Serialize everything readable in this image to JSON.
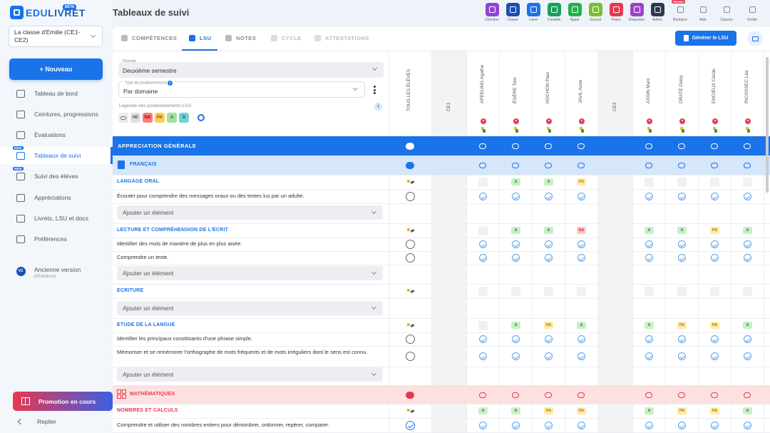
{
  "app": {
    "logo_prefix": "EDU",
    "logo_suffix": "LIVRET",
    "beta": "BÊTA",
    "page_title": "Tableaux de suivi"
  },
  "colors": {
    "primary": "#1a73e8",
    "francais": "#d6e6fb",
    "maths": "#fde0e0",
    "danger": "#e8384f"
  },
  "sidebar": {
    "class_select": "La classe d'Emilie (CE1-CE2)",
    "new_button": "+ Nouveau",
    "items": [
      {
        "label": "Tableau de bord",
        "icon": "home-icon",
        "active": false,
        "new": false
      },
      {
        "label": "Ceintures, progressions",
        "icon": "belt-icon",
        "active": false,
        "new": false
      },
      {
        "label": "Évaluations",
        "icon": "checkbox-icon",
        "active": false,
        "new": false
      },
      {
        "label": "Tableaux de suivi",
        "icon": "table-icon",
        "active": true,
        "new": true
      },
      {
        "label": "Suivi des élèves",
        "icon": "users-icon",
        "active": false,
        "new": true
      },
      {
        "label": "Appréciations",
        "icon": "chat-icon",
        "active": false,
        "new": false
      },
      {
        "label": "Livrets, LSU et docs",
        "icon": "book-icon",
        "active": false,
        "new": false
      },
      {
        "label": "Préférences",
        "icon": "gear-icon",
        "active": false,
        "new": false
      }
    ],
    "old_version": "Ancienne version",
    "old_version_sub": "d'Edulivret",
    "old_version_badge": "V1",
    "new_tag": "NEW",
    "promo": "Promotion en cours",
    "collapse": "Replier"
  },
  "toolbar": [
    {
      "label": "Direction",
      "color": "#8e44d6",
      "icon": "pen-icon"
    },
    {
      "label": "Classe",
      "color": "#1a4fb4",
      "icon": "class-icon"
    },
    {
      "label": "Livret",
      "color": "#1a73e8",
      "icon": "check-icon"
    },
    {
      "label": "Cartable",
      "color": "#1aa05a",
      "icon": "bag-icon"
    },
    {
      "label": "Appel",
      "color": "#23b24b",
      "icon": "hand-icon"
    },
    {
      "label": "Journal",
      "color": "#7cbf2e",
      "icon": "calendar-icon"
    },
    {
      "label": "Preps",
      "color": "#e8384f",
      "icon": "doc-icon"
    },
    {
      "label": "Étiquettes",
      "color": "#a040c8",
      "icon": "tag-icon"
    },
    {
      "label": "Admin",
      "color": "#2b3a4a",
      "icon": "gear-icon"
    },
    {
      "label": "Boutique",
      "color": "#ffffff",
      "icon": "cart-icon",
      "promo": "PROMO"
    },
    {
      "label": "Aide",
      "color": "#ffffff",
      "icon": "help-icon"
    },
    {
      "label": "Classes",
      "color": "#ffffff",
      "icon": "grid-icon"
    },
    {
      "label": "Emilie",
      "color": "#ffffff",
      "icon": "avatar-icon"
    }
  ],
  "tabs": [
    {
      "label": "COMPÉTENCES",
      "state": "normal"
    },
    {
      "label": "LSU",
      "state": "active"
    },
    {
      "label": "NOTES",
      "state": "normal"
    },
    {
      "label": "CYCLE",
      "state": "disabled"
    },
    {
      "label": "ATTESTATIONS",
      "state": "disabled"
    }
  ],
  "actions": {
    "generate": "Générer le LSU"
  },
  "filters": {
    "period_label": "Période",
    "period_value": "Deuxième semestre",
    "type_label": "Type de positionnement",
    "type_value": "Par domaine",
    "legend_label": "Légende des positionnements LSU",
    "legend": [
      {
        "code": "",
        "bg": "#e9eaec",
        "fg": "#777"
      },
      {
        "code": "NE",
        "bg": "#e0e0e0",
        "fg": "#555"
      },
      {
        "code": "NA",
        "bg": "#ff7a7a",
        "fg": "#8b0000"
      },
      {
        "code": "PA",
        "bg": "#ffcc55",
        "fg": "#7a5300"
      },
      {
        "code": "A",
        "bg": "#9ee39e",
        "fg": "#1e6e1e"
      },
      {
        "code": "D",
        "bg": "#6fd3d3",
        "fg": "#0a5e5e"
      }
    ]
  },
  "columns": {
    "all_students": "TOUS LES ÉLÈVES",
    "groups": [
      {
        "level": "CE1",
        "students": [
          "AFEELING Agathe",
          "ÉGÈRE Tom",
          "HOCHON Paul",
          "JAVIL Aude"
        ]
      },
      {
        "level": "CE2",
        "students": [
          "ASSIN Marc",
          "DRATÉ Daisy",
          "ENCIEUX Cécile",
          "RICOSSEC Léa"
        ]
      }
    ]
  },
  "sections": {
    "general": "APPRECIATION GÉNÉRALE",
    "francais": "FRANÇAIS",
    "maths": "MATHÉMATIQUES"
  },
  "rows": {
    "langage_oral": "LANGAGE ORAL",
    "langage_item1": "Écouter pour comprendre des messages oraux ou des textes lus par un adulte.",
    "lecture": "LECTURE ET COMPRÉHENSION DE L'ÉCRIT",
    "lecture_item1": "Identifier des mots de manière de plus en plus aisée.",
    "lecture_item2": "Comprendre un texte.",
    "ecriture": "ECRITURE",
    "etude": "ETUDE DE LA LANGUE",
    "etude_item1": "Identifier les principaux constituants d'une phrase simple.",
    "etude_item2": "Mémoriser et se remémorer l'orthographe de mots fréquents et de mots irréguliers dont le sens est connu.",
    "nombres": "NOMBRES ET CALCULS",
    "nombres_item1": "Comprendre et utiliser des nombres entiers pour dénombrer, ordonner, repérer, comparer.",
    "add_element": "Ajouter un élément"
  },
  "grades": {
    "langage_oral": [
      "",
      "A",
      "A",
      "PA",
      "",
      "",
      "",
      ""
    ],
    "lecture": [
      "",
      "A",
      "A",
      "NA",
      "A",
      "A",
      "PA",
      "A"
    ],
    "ecriture": [
      "",
      "",
      "",
      "",
      "",
      "",
      "",
      ""
    ],
    "etude": [
      "",
      "A",
      "PA",
      "A",
      "A",
      "PA",
      "PA",
      "A"
    ],
    "nombres": [
      "A",
      "A",
      "PA",
      "PA",
      "A",
      "PA",
      "PA",
      "A"
    ]
  }
}
